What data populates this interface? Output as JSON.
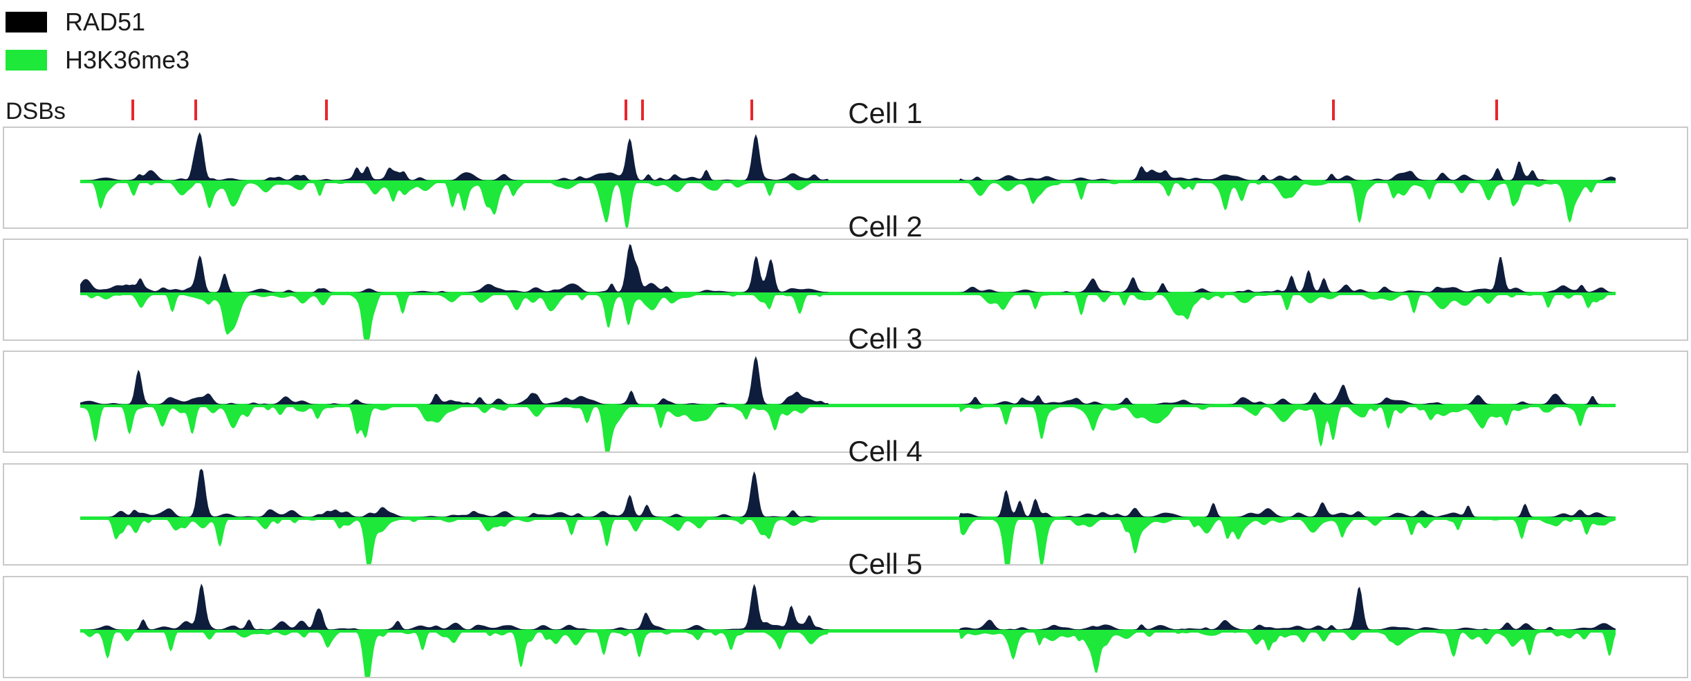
{
  "legend": [
    {
      "label": "RAD51",
      "color": "#000000"
    },
    {
      "label": "H3K36me3",
      "color": "#1ee83a"
    }
  ],
  "chart_data": {
    "type": "area",
    "dsb_label": "DSBs",
    "dsb_positions": [
      0.037,
      0.078,
      0.163,
      0.358,
      0.369,
      0.44,
      0.819,
      0.925
    ],
    "gap": [
      0.487,
      0.573
    ],
    "colors": {
      "rad51": "#0f1d3c",
      "h3k36me3": "#1ee83a",
      "baseline": "#1ee83a"
    },
    "series": [
      {
        "name": "RAD51",
        "sign": "positive"
      },
      {
        "name": "H3K36me3",
        "sign": "negative"
      }
    ],
    "cells": [
      {
        "name": "Cell 1",
        "rad51": [
          [
            0.078,
            0.95
          ],
          [
            0.074,
            0.3
          ],
          [
            0.358,
            0.82
          ],
          [
            0.44,
            0.95
          ],
          [
            0.18,
            0.22
          ],
          [
            0.187,
            0.28
          ],
          [
            0.201,
            0.16
          ],
          [
            0.211,
            0.14
          ],
          [
            0.37,
            0.13
          ],
          [
            0.408,
            0.17
          ],
          [
            0.691,
            0.18
          ],
          [
            0.707,
            0.12
          ],
          [
            0.815,
            0.14
          ],
          [
            0.923,
            0.22
          ],
          [
            0.937,
            0.35
          ],
          [
            0.946,
            0.2
          ]
        ],
        "h3k": [
          [
            0.013,
            0.4
          ],
          [
            0.035,
            0.28
          ],
          [
            0.084,
            0.38
          ],
          [
            0.156,
            0.3
          ],
          [
            0.242,
            0.42
          ],
          [
            0.25,
            0.55
          ],
          [
            0.27,
            0.35
          ],
          [
            0.343,
            0.8
          ],
          [
            0.356,
            1.0
          ],
          [
            0.449,
            0.3
          ],
          [
            0.62,
            0.25
          ],
          [
            0.652,
            0.38
          ],
          [
            0.709,
            0.28
          ],
          [
            0.746,
            0.34
          ],
          [
            0.833,
            0.82
          ],
          [
            0.855,
            0.28
          ],
          [
            0.933,
            0.34
          ],
          [
            0.97,
            0.44
          ]
        ]
      },
      {
        "name": "Cell 2",
        "rad51": [
          [
            0.078,
            0.72
          ],
          [
            0.039,
            0.22
          ],
          [
            0.094,
            0.4
          ],
          [
            0.358,
            1.0
          ],
          [
            0.363,
            0.4
          ],
          [
            0.44,
            0.7
          ],
          [
            0.45,
            0.62
          ],
          [
            0.705,
            0.2
          ],
          [
            0.789,
            0.32
          ],
          [
            0.8,
            0.42
          ],
          [
            0.81,
            0.3
          ],
          [
            0.925,
            0.75
          ],
          [
            0.978,
            0.14
          ]
        ],
        "h3k": [
          [
            0.06,
            0.38
          ],
          [
            0.095,
            0.5
          ],
          [
            0.187,
            0.95
          ],
          [
            0.21,
            0.42
          ],
          [
            0.344,
            0.55
          ],
          [
            0.357,
            0.65
          ],
          [
            0.449,
            0.3
          ],
          [
            0.622,
            0.32
          ],
          [
            0.652,
            0.45
          ],
          [
            0.68,
            0.25
          ],
          [
            0.786,
            0.35
          ],
          [
            0.869,
            0.3
          ],
          [
            0.956,
            0.28
          ],
          [
            0.982,
            0.22
          ]
        ]
      },
      {
        "name": "Cell 3",
        "rad51": [
          [
            0.038,
            0.55
          ],
          [
            0.359,
            0.25
          ],
          [
            0.44,
            1.0
          ],
          [
            0.467,
            0.1
          ],
          [
            0.583,
            0.14
          ],
          [
            0.624,
            0.16
          ],
          [
            0.804,
            0.18
          ],
          [
            0.823,
            0.15
          ],
          [
            0.985,
            0.18
          ]
        ],
        "h3k": [
          [
            0.01,
            0.62
          ],
          [
            0.032,
            0.55
          ],
          [
            0.073,
            0.58
          ],
          [
            0.18,
            0.48
          ],
          [
            0.186,
            0.62
          ],
          [
            0.33,
            0.35
          ],
          [
            0.343,
            0.95
          ],
          [
            0.378,
            0.45
          ],
          [
            0.434,
            0.25
          ],
          [
            0.603,
            0.4
          ],
          [
            0.626,
            0.55
          ],
          [
            0.66,
            0.42
          ],
          [
            0.808,
            0.85
          ],
          [
            0.816,
            0.72
          ],
          [
            0.852,
            0.48
          ],
          [
            0.929,
            0.38
          ],
          [
            0.977,
            0.32
          ]
        ]
      },
      {
        "name": "Cell 4",
        "rad51": [
          [
            0.079,
            1.0
          ],
          [
            0.035,
            0.12
          ],
          [
            0.358,
            0.38
          ],
          [
            0.369,
            0.22
          ],
          [
            0.439,
            0.95
          ],
          [
            0.603,
            0.55
          ],
          [
            0.612,
            0.32
          ],
          [
            0.622,
            0.36
          ],
          [
            0.738,
            0.3
          ],
          [
            0.904,
            0.24
          ],
          [
            0.941,
            0.28
          ]
        ],
        "h3k": [
          [
            0.023,
            0.3
          ],
          [
            0.091,
            0.55
          ],
          [
            0.188,
            1.0
          ],
          [
            0.32,
            0.35
          ],
          [
            0.343,
            0.55
          ],
          [
            0.449,
            0.3
          ],
          [
            0.604,
            0.8
          ],
          [
            0.626,
            0.85
          ],
          [
            0.687,
            0.45
          ],
          [
            0.747,
            0.38
          ],
          [
            0.867,
            0.32
          ],
          [
            0.939,
            0.4
          ],
          [
            0.981,
            0.32
          ]
        ]
      },
      {
        "name": "Cell 5",
        "rad51": [
          [
            0.079,
            0.95
          ],
          [
            0.041,
            0.22
          ],
          [
            0.11,
            0.2
          ],
          [
            0.154,
            0.22
          ],
          [
            0.157,
            0.3
          ],
          [
            0.207,
            0.14
          ],
          [
            0.368,
            0.26
          ],
          [
            0.439,
            0.95
          ],
          [
            0.463,
            0.45
          ],
          [
            0.475,
            0.25
          ],
          [
            0.833,
            0.9
          ],
          [
            0.815,
            0.1
          ]
        ],
        "h3k": [
          [
            0.018,
            0.38
          ],
          [
            0.059,
            0.42
          ],
          [
            0.187,
            1.0
          ],
          [
            0.223,
            0.4
          ],
          [
            0.287,
            0.75
          ],
          [
            0.341,
            0.5
          ],
          [
            0.364,
            0.52
          ],
          [
            0.424,
            0.35
          ],
          [
            0.608,
            0.3
          ],
          [
            0.662,
            0.55
          ],
          [
            0.774,
            0.36
          ],
          [
            0.895,
            0.48
          ],
          [
            0.944,
            0.48
          ],
          [
            0.996,
            0.52
          ]
        ]
      }
    ]
  }
}
